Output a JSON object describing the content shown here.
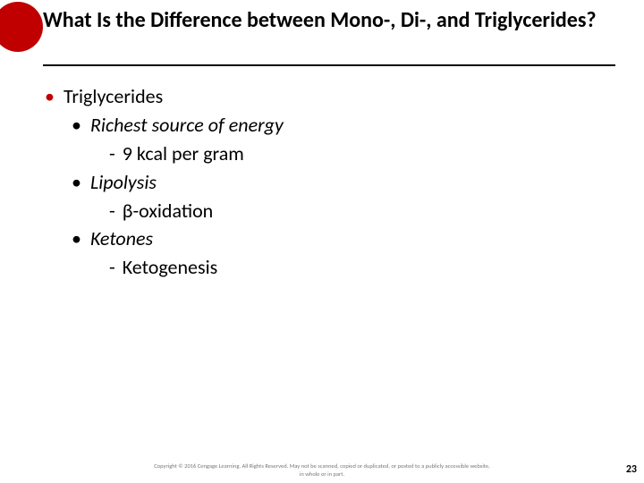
{
  "title": "What Is the Difference between Mono-, Di-, and Triglycerides?",
  "accent_color": "#c00000",
  "l1_item": "Triglycerides",
  "items": [
    {
      "head": "Richest source of energy",
      "sub": "9 kcal per gram"
    },
    {
      "head": "Lipolysis",
      "sub": "β-oxidation"
    },
    {
      "head": "Ketones",
      "sub": "Ketogenesis"
    }
  ],
  "footer_line1": "Copyright © 2016 Cengage Learning. All Rights Reserved. May not be scanned, copied or duplicated, or posted to a publicly accessible website,",
  "footer_line2": "in whole or in part.",
  "page_number": "23"
}
